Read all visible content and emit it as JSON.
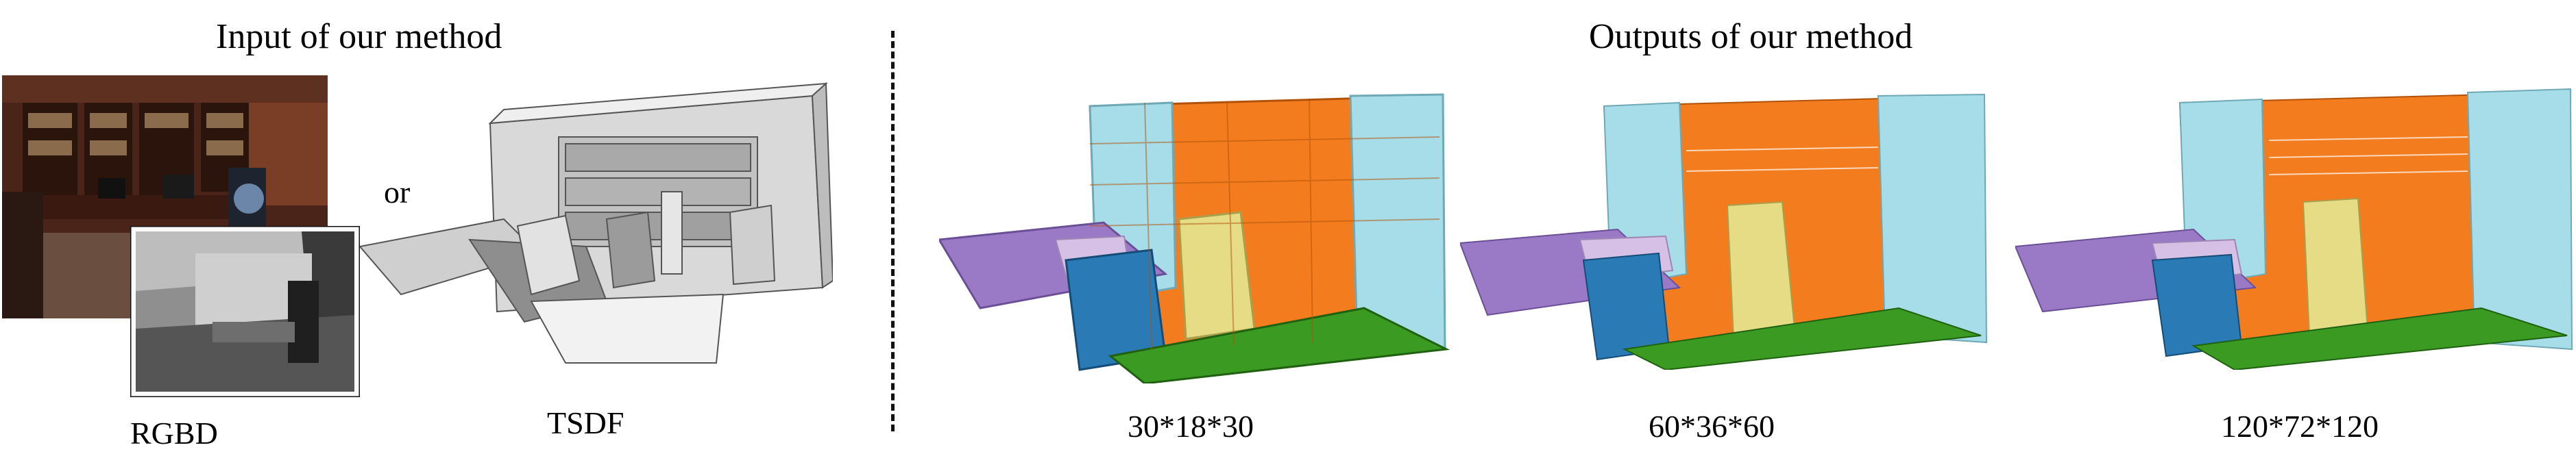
{
  "input_title": "Input of  our method",
  "output_title": "Outputs of  our method",
  "or_label": "or",
  "rgbd_label": "RGBD",
  "tsdf_label": "TSDF",
  "resolutions": [
    "30*18*30",
    "60*36*60",
    "120*72*120"
  ],
  "colors": {
    "wall": "#f27c1e",
    "cabinet": "#a6dde8",
    "floor": "#3a9a22",
    "chair": "#e6dc86",
    "table": "#2a7ab5",
    "desk": "#9a79c7",
    "misc": "#d6c0e6"
  }
}
